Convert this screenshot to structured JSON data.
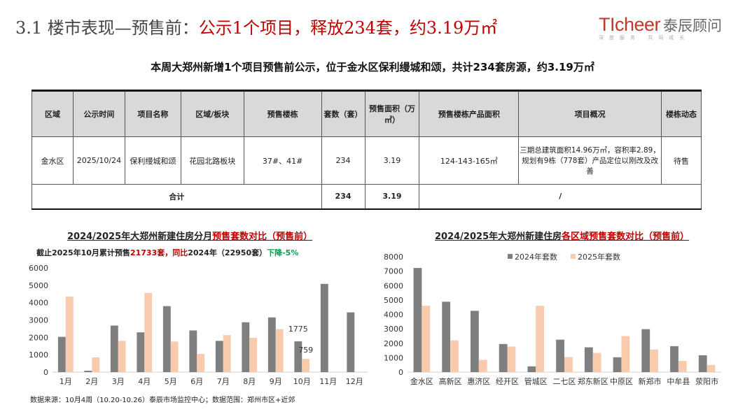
{
  "header": {
    "title_prefix": "3.1 楼市表现—预售前：",
    "title_highlight": "公示1个项目，释放234套，约3.19万㎡"
  },
  "logo": {
    "en": "TIcheer",
    "cn": "泰辰顾问",
    "tagline": "深度服务 共同成长"
  },
  "subtitle": "本周大郑州新增1个项目预售前公示，位于金水区保利缦城和颂，共计234套房源，约3.19万㎡",
  "table": {
    "headers": [
      "区域",
      "公示时间",
      "项目名称",
      "区域/板块",
      "预售楼栋",
      "套数（套）",
      "预售面积（万㎡）",
      "预售楼栋产品面积",
      "项目概况",
      "楼栋动态"
    ],
    "rows": [
      [
        "金水区",
        "2025/10/24",
        "保利缦城和颂",
        "花园北路板块",
        "37#、41#",
        "234",
        "3.19",
        "124-143-165㎡",
        "三期总建筑面积14.96万㎡，容积率2.89，规划有9栋（778套）产品定位以刚改及改善",
        "待售"
      ]
    ],
    "total": {
      "label": "合计",
      "units": "234",
      "area": "3.19",
      "note": "/"
    }
  },
  "colors": {
    "series_2024": "#7f7f7f",
    "series_2025": "#f8cbad",
    "accent_red": "#c00000",
    "decline_green": "#00a050"
  },
  "left_chart": {
    "title_prefix": "2024/2025年大郑州新建住房分月",
    "title_highlight": "预售套数对比（预售前）",
    "note": {
      "p1": "截止2025年10月累计预售",
      "p2": "21733套，同比",
      "p3": "2024年（22950套）",
      "p4": "下降-5%"
    }
  },
  "right_chart": {
    "title_prefix": "2024/2025年大郑州新建住房",
    "title_highlight": "各区域预售套数对比（预售前）"
  },
  "source": "数据来源：10月4周（10.20-10.26）泰辰市场监控中心；数据范围：郑州市区+近郊",
  "chart_data": [
    {
      "type": "bar",
      "categories": [
        "1月",
        "2月",
        "3月",
        "4月",
        "5月",
        "6月",
        "7月",
        "8月",
        "9月",
        "10月",
        "11月",
        "12月"
      ],
      "series": [
        {
          "values": [
            2030,
            80,
            2680,
            2290,
            3800,
            2400,
            1800,
            2870,
            3150,
            1775,
            5080,
            3440
          ]
        },
        {
          "values": [
            4350,
            850,
            1800,
            4560,
            1760,
            1050,
            2130,
            1970,
            2480,
            759,
            null,
            null
          ]
        }
      ],
      "data_labels": [
        "1775",
        "759"
      ],
      "ylim": [
        0,
        6000
      ],
      "yticks": [
        0,
        1000,
        2000,
        3000,
        4000,
        5000,
        6000
      ],
      "grid": false,
      "legend": "none"
    },
    {
      "type": "bar",
      "categories": [
        "金水区",
        "高新区",
        "惠济区",
        "经开区",
        "管城区",
        "二七区",
        "郑东新区",
        "中原区",
        "新郑市",
        "中牟县",
        "荥阳市"
      ],
      "series": [
        {
          "name": "2024年套数",
          "values": [
            7220,
            4880,
            4250,
            1950,
            400,
            2250,
            1720,
            1030,
            2980,
            1800,
            1170
          ]
        },
        {
          "name": "2025年套数",
          "values": [
            4600,
            2200,
            850,
            1770,
            4600,
            1040,
            1330,
            2500,
            1570,
            780,
            500
          ]
        }
      ],
      "ylim": [
        0,
        8000
      ],
      "yticks": [
        0,
        1000,
        2000,
        3000,
        4000,
        5000,
        6000,
        7000,
        8000
      ],
      "grid": false,
      "legend": "top"
    }
  ]
}
